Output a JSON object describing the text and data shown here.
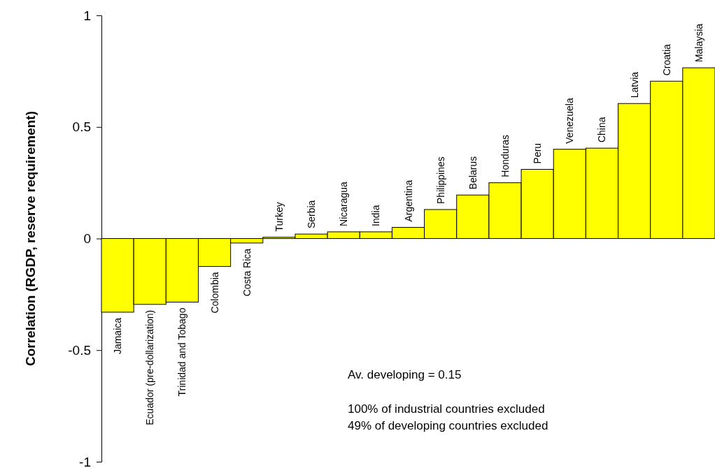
{
  "chart_data": {
    "type": "bar",
    "ylabel": "Correlation (RGDP, reserve requirement)",
    "categories": [
      "Jamaica",
      "Ecuador (pre-dollarization)",
      "Trinidad and Tobago",
      "Colombia",
      "Costa Rica",
      "Turkey",
      "Serbia",
      "Nicaragua",
      "India",
      "Argentina",
      "Philippines",
      "Belarus",
      "Honduras",
      "Peru",
      "Venezuela",
      "China",
      "Latvia",
      "Croatia",
      "Malaysia"
    ],
    "values": [
      -0.33,
      -0.295,
      -0.285,
      -0.125,
      -0.02,
      0.006,
      0.02,
      0.03,
      0.03,
      0.05,
      0.13,
      0.195,
      0.25,
      0.31,
      0.4,
      0.405,
      0.605,
      0.705,
      0.765
    ],
    "color": "#ffff00",
    "ylim": [
      -1,
      1
    ],
    "yticks": [
      -1,
      -0.5,
      0,
      0.5,
      1
    ],
    "grid": false,
    "annotations": [
      "Av. developing = 0.15",
      "100% of industrial countries excluded",
      "49% of developing countries excluded"
    ]
  }
}
